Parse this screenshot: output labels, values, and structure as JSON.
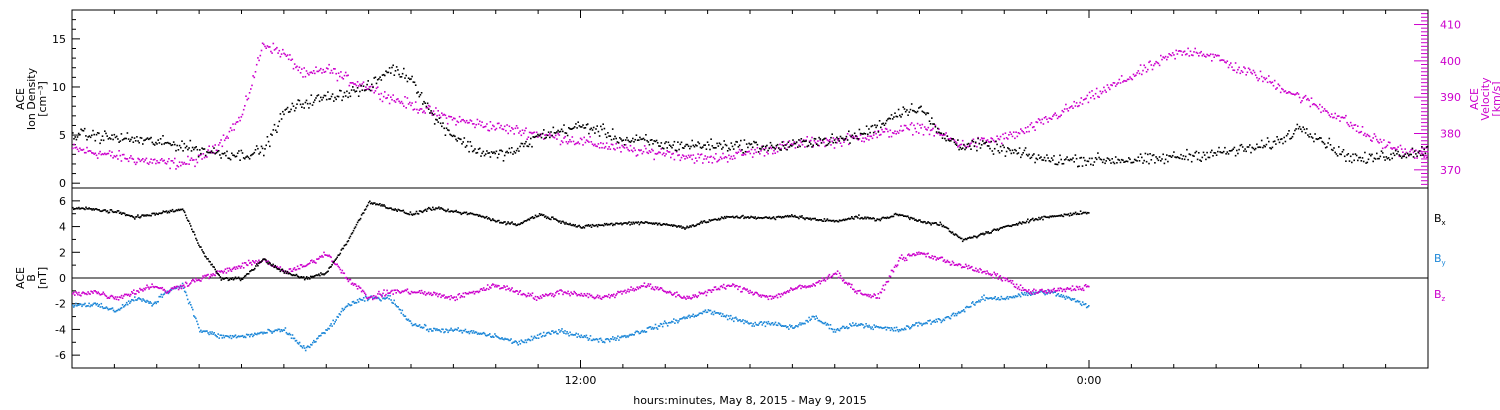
{
  "chart_data": [
    {
      "type": "scatter",
      "panel": "top",
      "ylabel_lines": [
        "ACE",
        "Ion Density",
        "[cm⁻³]"
      ],
      "ylabel_right_lines": [
        "ACE",
        "Velocity",
        "[km/s]"
      ],
      "y_ticks": [
        "0",
        "5",
        "10",
        "15"
      ],
      "y_ticks_right": [
        "370",
        "380",
        "390",
        "400",
        "410"
      ],
      "ylim": [
        -0.5,
        18
      ],
      "ylim_right": [
        365,
        414
      ],
      "xlim_hours": [
        0,
        32
      ],
      "series": [
        {
          "color": "#000000",
          "axis": "left",
          "x": [
            0,
            0.5,
            1,
            1.5,
            1.9,
            2.2,
            2.6,
            3,
            3.5,
            4,
            4.5,
            5,
            5.5,
            6,
            6.5,
            7,
            7.5,
            8,
            8.5,
            9,
            9.5,
            10,
            10.5,
            11,
            11.5,
            12,
            12.5,
            13,
            13.5,
            14,
            14.5,
            15,
            15.5,
            16,
            16.5,
            17,
            17.5,
            18,
            18.5,
            19,
            19.5,
            20,
            20.5,
            21,
            21.5,
            22,
            22.5,
            23,
            23.5,
            24,
            24.5,
            25,
            25.5,
            26,
            26.5,
            27,
            27.5,
            28,
            28.5,
            29,
            29.5,
            30,
            30.5,
            31,
            31.5,
            32
          ],
          "y": [
            5.2,
            5,
            4.8,
            4.6,
            4.4,
            4.2,
            4,
            3.5,
            3.2,
            3,
            3.5,
            7.5,
            8.5,
            9,
            9.5,
            10,
            12,
            11,
            7,
            5,
            3.5,
            3,
            3.5,
            5,
            5.5,
            6,
            5.5,
            4.5,
            4.5,
            4,
            4,
            4,
            4,
            4,
            3.8,
            4,
            4.5,
            4.5,
            5,
            6,
            7.5,
            8,
            5,
            4,
            4,
            3.5,
            3,
            2.5,
            2.5,
            2.5,
            2.5,
            2.5,
            2.5,
            2.8,
            3,
            3.2,
            3.5,
            3.8,
            4.5,
            6,
            4.5,
            3,
            2.5,
            3,
            3.2,
            3.5
          ]
        },
        {
          "color": "#cc00cc",
          "axis": "right",
          "x": [
            0,
            0.5,
            1,
            1.5,
            1.9,
            2.2,
            2.6,
            3,
            3.5,
            4,
            4.5,
            5,
            5.5,
            6,
            6.5,
            7,
            7.5,
            8,
            8.5,
            9,
            9.5,
            10,
            10.5,
            11,
            11.5,
            12,
            12.5,
            13,
            13.5,
            14,
            14.5,
            15,
            15.5,
            16,
            16.5,
            17,
            17.5,
            18,
            18.5,
            19,
            19.5,
            20,
            20.5,
            21,
            21.5,
            22,
            22.5,
            23,
            23.5,
            24,
            24.5,
            25,
            25.5,
            26,
            26.5,
            27,
            27.5,
            28,
            28.5,
            29,
            29.5,
            30,
            30.5,
            31,
            31.5,
            32
          ],
          "y": [
            376,
            375,
            374,
            373,
            372.5,
            372,
            372,
            373,
            378,
            385,
            405,
            402,
            396,
            398,
            395,
            393,
            390,
            388,
            386,
            384,
            383,
            382,
            381,
            380,
            379,
            378,
            377,
            376,
            375,
            375,
            374,
            373,
            374,
            375,
            376,
            377,
            378,
            378,
            379,
            380,
            381,
            382,
            380,
            377,
            378,
            379,
            381,
            384,
            387,
            390,
            393,
            396,
            399,
            402,
            403,
            401,
            398,
            396,
            393,
            390,
            387,
            384,
            380,
            377,
            375,
            374
          ]
        }
      ]
    },
    {
      "type": "scatter",
      "panel": "bottom",
      "ylabel_lines": [
        "ACE",
        "B",
        "[nT]"
      ],
      "y_ticks": [
        "-6",
        "-4",
        "-2",
        "0",
        "2",
        "4",
        "6"
      ],
      "ylim": [
        -7,
        7
      ],
      "xlim_hours": [
        0,
        32
      ],
      "zero_line": true,
      "xlabel": "hours:minutes, May  8, 2015 - May  9, 2015",
      "x_tick_labels": [
        {
          "label": "12:00",
          "hour": 12
        },
        {
          "label": "0:00",
          "hour": 24
        }
      ],
      "legend": [
        {
          "label": "B",
          "sub": "x",
          "color": "#000000"
        },
        {
          "label": "B",
          "sub": "y",
          "color": "#1e88d8"
        },
        {
          "label": "B",
          "sub": "z",
          "color": "#cc00cc"
        }
      ],
      "series": [
        {
          "name": "Bx",
          "color": "#000000",
          "x": [
            0,
            0.5,
            1,
            1.5,
            1.9,
            2.2,
            2.6,
            3,
            3.5,
            4,
            4.5,
            5,
            5.5,
            6,
            6.5,
            7,
            7.5,
            8,
            8.5,
            9,
            9.5,
            10,
            10.5,
            11,
            11.5,
            12,
            12.5,
            13,
            13.5,
            14,
            14.5,
            15,
            15.5,
            16,
            16.5,
            17,
            17.5,
            18,
            18.5,
            19,
            19.5,
            20,
            20.5,
            21,
            21.5,
            22,
            22.5,
            23,
            23.5,
            24
          ],
          "y": [
            5.5,
            5.4,
            5.2,
            4.8,
            5,
            5.2,
            5.4,
            2.5,
            0,
            0,
            1.5,
            0.5,
            0,
            0.5,
            3,
            6,
            5.5,
            5,
            5.5,
            5.2,
            5,
            4.5,
            4.2,
            5,
            4.5,
            4,
            4.2,
            4.3,
            4.4,
            4.2,
            4,
            4.5,
            4.8,
            4.8,
            4.7,
            4.9,
            4.6,
            4.5,
            4.8,
            4.6,
            5,
            4.5,
            4.2,
            3,
            3.5,
            4,
            4.5,
            4.8,
            5,
            5.2
          ]
        },
        {
          "name": "By",
          "color": "#1e88d8",
          "x": [
            0,
            0.5,
            1,
            1.5,
            1.9,
            2.2,
            2.6,
            3,
            3.5,
            4,
            4.5,
            5,
            5.5,
            6,
            6.5,
            7,
            7.5,
            8,
            8.5,
            9,
            9.5,
            10,
            10.5,
            11,
            11.5,
            12,
            12.5,
            13,
            13.5,
            14,
            14.5,
            15,
            15.5,
            16,
            16.5,
            17,
            17.5,
            18,
            18.5,
            19,
            19.5,
            20,
            20.5,
            21,
            21.5,
            22,
            22.5,
            23,
            23.5,
            24
          ],
          "y": [
            -2,
            -2,
            -2.5,
            -1.5,
            -2,
            -1,
            -0.5,
            -4,
            -4.5,
            -4.5,
            -4.2,
            -4,
            -5.5,
            -4,
            -2,
            -1.5,
            -1.5,
            -3.5,
            -4,
            -4,
            -4.2,
            -4.5,
            -5,
            -4.5,
            -4,
            -4.5,
            -4.8,
            -4.5,
            -4,
            -3.5,
            -3,
            -2.5,
            -3,
            -3.5,
            -3.5,
            -3.8,
            -3,
            -4,
            -3.5,
            -3.8,
            -4,
            -3.5,
            -3.2,
            -2.5,
            -1.5,
            -1.5,
            -1.2,
            -1,
            -1.5,
            -2.2
          ]
        },
        {
          "name": "Bz",
          "color": "#cc00cc",
          "x": [
            0,
            0.5,
            1,
            1.5,
            1.9,
            2.2,
            2.6,
            3,
            3.5,
            4,
            4.5,
            5,
            5.5,
            6,
            6.5,
            7,
            7.5,
            8,
            8.5,
            9,
            9.5,
            10,
            10.5,
            11,
            11.5,
            12,
            12.5,
            13,
            13.5,
            14,
            14.5,
            15,
            15.5,
            16,
            16.5,
            17,
            17.5,
            18,
            18.5,
            19,
            19.5,
            20,
            20.5,
            21,
            21.5,
            22,
            22.5,
            23,
            23.5,
            24
          ],
          "y": [
            -1.2,
            -1,
            -1.5,
            -1,
            -0.5,
            -1,
            -0.5,
            0,
            0.5,
            1,
            1.5,
            0.5,
            1,
            2,
            0,
            -1.5,
            -1,
            -1,
            -1.2,
            -1.5,
            -1,
            -0.5,
            -1,
            -1.5,
            -1,
            -1.2,
            -1.5,
            -1,
            -0.5,
            -1,
            -1.5,
            -1,
            -0.5,
            -1,
            -1.5,
            -0.8,
            -0.5,
            0.5,
            -1,
            -1.5,
            1.5,
            2,
            1.5,
            1,
            0.5,
            0,
            -1,
            -1,
            -0.8,
            -0.6
          ]
        }
      ]
    }
  ]
}
